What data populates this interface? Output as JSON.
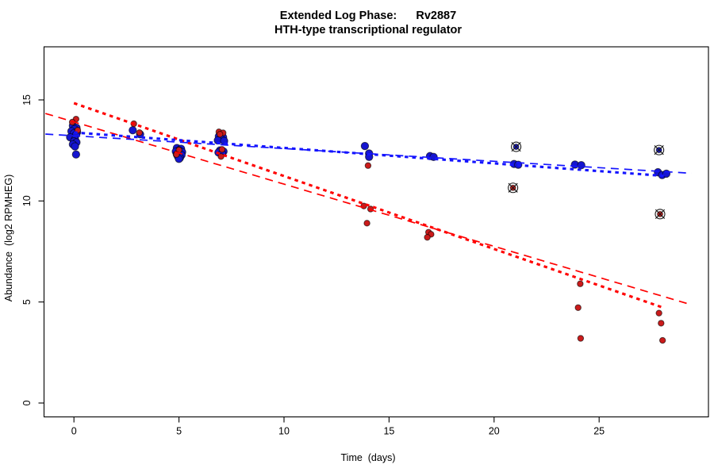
{
  "title": {
    "line1": "Extended Log Phase:      Rv2887",
    "line2": "HTH-type transcriptional regulator"
  },
  "colors": {
    "blue_point_fill": "#1515CF",
    "red_point_fill": "#CB1B1B",
    "point_edge": "rgba(0,0,0,0.6)",
    "blue_line": "#1414FF",
    "red_line": "#FF0000",
    "axis": "#000000",
    "flag_marker": "#1a1a1a"
  },
  "chart_data": {
    "type": "scatter",
    "title": "Extended Log Phase:      Rv2887",
    "subtitle": "HTH-type transcriptional regulator",
    "xlabel": "Time  (days)",
    "ylabel": "Abundance  (log2 RPMHEG)",
    "x_ticks": [
      0,
      5,
      10,
      15,
      20,
      25
    ],
    "y_ticks": [
      0,
      5,
      10,
      15
    ],
    "xlim": [
      -1.4,
      30.2
    ],
    "ylim": [
      -0.7,
      17.6
    ],
    "grid": false,
    "legend": "none",
    "series": [
      {
        "name": "blue-series",
        "color": "#1515CF",
        "radius": 4.7,
        "points": [
          [
            -0.05,
            13.72
          ],
          [
            0.12,
            13.62
          ],
          [
            0.03,
            13.55
          ],
          [
            -0.12,
            13.45
          ],
          [
            0.15,
            13.4
          ],
          [
            0.0,
            13.35
          ],
          [
            0.1,
            13.28
          ],
          [
            -0.18,
            13.15
          ],
          [
            0.05,
            13.05
          ],
          [
            0.0,
            12.95
          ],
          [
            0.12,
            12.9
          ],
          [
            -0.05,
            12.8
          ],
          [
            0.05,
            12.7
          ],
          [
            0.1,
            12.3
          ],
          [
            2.8,
            13.5
          ],
          [
            3.15,
            13.3
          ],
          [
            4.9,
            12.62
          ],
          [
            5.1,
            12.58
          ],
          [
            5.0,
            12.5
          ],
          [
            4.85,
            12.45
          ],
          [
            5.15,
            12.42
          ],
          [
            5.0,
            12.36
          ],
          [
            4.9,
            12.3
          ],
          [
            5.12,
            12.27
          ],
          [
            4.95,
            12.2
          ],
          [
            5.05,
            12.14
          ],
          [
            5.0,
            12.08
          ],
          [
            6.9,
            13.2
          ],
          [
            7.1,
            13.15
          ],
          [
            7.0,
            13.08
          ],
          [
            6.85,
            13.0
          ],
          [
            7.15,
            12.97
          ],
          [
            6.95,
            12.5
          ],
          [
            7.12,
            12.45
          ],
          [
            6.88,
            12.4
          ],
          [
            7.05,
            12.35
          ],
          [
            13.85,
            12.72
          ],
          [
            14.05,
            12.35
          ],
          [
            14.05,
            12.18
          ],
          [
            16.95,
            12.22
          ],
          [
            17.12,
            12.18
          ],
          [
            20.95,
            11.83
          ],
          [
            21.15,
            11.79
          ],
          [
            23.85,
            11.8
          ],
          [
            24.15,
            11.77
          ],
          [
            27.8,
            11.42
          ],
          [
            28.0,
            11.28
          ],
          [
            28.2,
            11.35
          ]
        ]
      },
      {
        "name": "red-series",
        "color": "#CB1B1B",
        "radius": 3.7,
        "points": [
          [
            0.1,
            14.05
          ],
          [
            -0.08,
            13.9
          ],
          [
            0.18,
            13.5
          ],
          [
            2.85,
            13.82
          ],
          [
            3.12,
            13.38
          ],
          [
            5.0,
            12.52
          ],
          [
            4.88,
            12.3
          ],
          [
            6.9,
            13.42
          ],
          [
            7.1,
            13.37
          ],
          [
            6.95,
            13.3
          ],
          [
            7.05,
            12.55
          ],
          [
            7.0,
            12.2
          ],
          [
            14.0,
            11.75
          ],
          [
            13.8,
            9.75
          ],
          [
            14.12,
            9.6
          ],
          [
            13.95,
            8.9
          ],
          [
            16.88,
            8.45
          ],
          [
            17.0,
            8.35
          ],
          [
            16.82,
            8.2
          ],
          [
            24.1,
            5.9
          ],
          [
            24.0,
            4.72
          ],
          [
            24.12,
            3.2
          ],
          [
            27.85,
            4.45
          ],
          [
            27.95,
            3.95
          ],
          [
            28.02,
            3.1
          ]
        ]
      }
    ],
    "flagged_points": [
      {
        "series": "blue-series",
        "x": 21.05,
        "y": 12.68
      },
      {
        "series": "red-series",
        "x": 20.9,
        "y": 10.65
      },
      {
        "series": "blue-series",
        "x": 27.85,
        "y": 12.52
      },
      {
        "series": "red-series",
        "x": 27.9,
        "y": 9.35
      }
    ],
    "trend_lines": [
      {
        "name": "red-dashed-fit",
        "color": "#FF0000",
        "style": "long-dash",
        "x0": -1.36,
        "y0": 14.33,
        "x1": 29.4,
        "y1": 4.86
      },
      {
        "name": "red-dotted-fit",
        "color": "#FF0000",
        "style": "dotted-thick",
        "x0": 0.0,
        "y0": 14.84,
        "x1": 28.1,
        "y1": 4.7
      },
      {
        "name": "blue-dashed-fit",
        "color": "#1414FF",
        "style": "long-dash",
        "x0": -1.36,
        "y0": 13.31,
        "x1": 29.4,
        "y1": 11.37
      },
      {
        "name": "blue-dotted-fit",
        "color": "#1414FF",
        "style": "dotted-thick",
        "x0": 0.0,
        "y0": 13.39,
        "x1": 28.1,
        "y1": 11.24
      }
    ]
  }
}
